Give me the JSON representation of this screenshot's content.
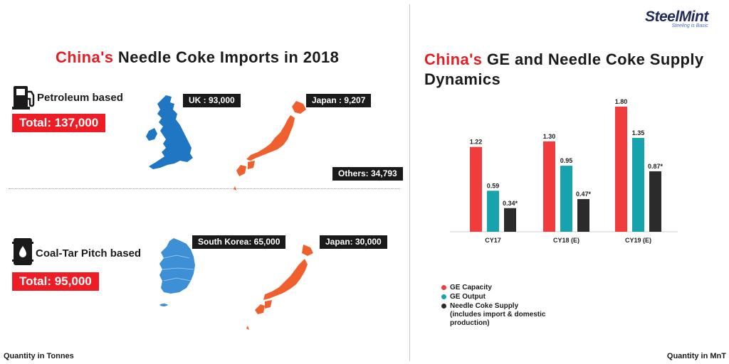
{
  "brand": {
    "name": "SteelMint",
    "tagline": "Steeling is Basic"
  },
  "left_panel": {
    "title_highlight": "China's",
    "title_rest": "Needle Coke Imports in 2018",
    "petroleum": {
      "label": "Petroleum based",
      "total": "Total: 137,000",
      "uk": "UK : 93,000",
      "japan": "Japan : 9,207",
      "others": "Others: 34,793"
    },
    "coal_tar": {
      "label": "Coal-Tar Pitch based",
      "total": "Total: 95,000",
      "south_korea": "South Korea: 65,000",
      "japan": "Japan: 30,000"
    },
    "footer": "Quantity in Tonnes"
  },
  "right_panel": {
    "title_highlight": "China's",
    "title_rest": "GE and Needle Coke Supply Dynamics",
    "footer": "Quantity in MnT"
  },
  "colors": {
    "ge_capacity": "#f03c3c",
    "ge_output": "#16a3ad",
    "needle_coke": "#2b2b2b",
    "brand_red": "#e41e26",
    "map_blue": "#1f77c4",
    "map_orange": "#f0602e"
  },
  "chart_data": {
    "type": "bar",
    "title": "China's GE and Needle Coke Supply Dynamics",
    "categories": [
      "CY17",
      "CY18 (E)",
      "CY19 (E)"
    ],
    "series": [
      {
        "name": "GE Capacity",
        "values": [
          1.22,
          1.3,
          1.8
        ],
        "labels": [
          "1.22",
          "1.30",
          "1.80"
        ]
      },
      {
        "name": "GE Output",
        "values": [
          0.59,
          0.95,
          1.35
        ],
        "labels": [
          "0.59",
          "0.95",
          "1.35"
        ]
      },
      {
        "name": "Needle Coke Supply (includes import & domestic production)",
        "values": [
          0.34,
          0.47,
          0.87
        ],
        "labels": [
          "0.34*",
          "0.47*",
          "0.87*"
        ]
      }
    ],
    "ylim": [
      0,
      1.8
    ],
    "grid": false,
    "legend_position": "bottom-left",
    "unit": "Quantity in MnT"
  }
}
